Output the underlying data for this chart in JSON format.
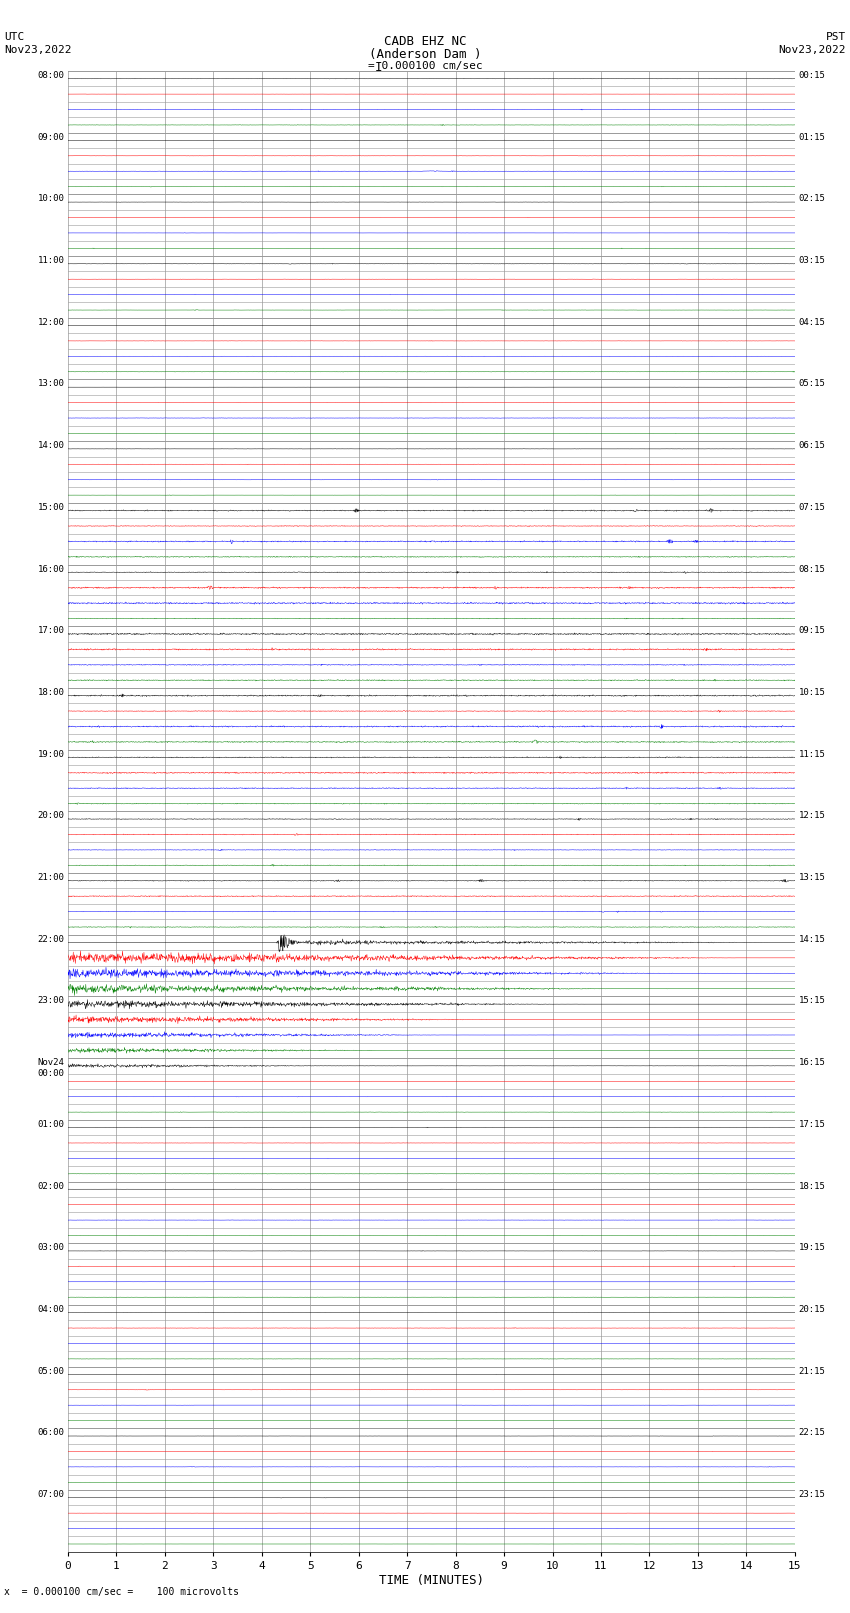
{
  "title_line1": "CADB EHZ NC",
  "title_line2": "(Anderson Dam )",
  "title_scale": "I = 0.000100 cm/sec",
  "left_header_line1": "UTC",
  "left_header_line2": "Nov23,2022",
  "right_header_line1": "PST",
  "right_header_line2": "Nov23,2022",
  "bottom_label": "TIME (MINUTES)",
  "bottom_note": "x  = 0.000100 cm/sec =    100 microvolts",
  "left_times": [
    "08:00",
    "",
    "",
    "",
    "09:00",
    "",
    "",
    "",
    "10:00",
    "",
    "",
    "",
    "11:00",
    "",
    "",
    "",
    "12:00",
    "",
    "",
    "",
    "13:00",
    "",
    "",
    "",
    "14:00",
    "",
    "",
    "",
    "15:00",
    "",
    "",
    "",
    "16:00",
    "",
    "",
    "",
    "17:00",
    "",
    "",
    "",
    "18:00",
    "",
    "",
    "",
    "19:00",
    "",
    "",
    "",
    "20:00",
    "",
    "",
    "",
    "21:00",
    "",
    "",
    "",
    "22:00",
    "",
    "",
    "",
    "23:00",
    "",
    "",
    "",
    "Nov24\n00:00",
    "",
    "",
    "",
    "01:00",
    "",
    "",
    "",
    "02:00",
    "",
    "",
    "",
    "03:00",
    "",
    "",
    "",
    "04:00",
    "",
    "",
    "",
    "05:00",
    "",
    "",
    "",
    "06:00",
    "",
    "",
    "",
    "07:00",
    "",
    "",
    ""
  ],
  "right_times": [
    "00:15",
    "",
    "",
    "",
    "01:15",
    "",
    "",
    "",
    "02:15",
    "",
    "",
    "",
    "03:15",
    "",
    "",
    "",
    "04:15",
    "",
    "",
    "",
    "05:15",
    "",
    "",
    "",
    "06:15",
    "",
    "",
    "",
    "07:15",
    "",
    "",
    "",
    "08:15",
    "",
    "",
    "",
    "09:15",
    "",
    "",
    "",
    "10:15",
    "",
    "",
    "",
    "11:15",
    "",
    "",
    "",
    "12:15",
    "",
    "",
    "",
    "13:15",
    "",
    "",
    "",
    "14:15",
    "",
    "",
    "",
    "15:15",
    "",
    "",
    "",
    "16:15",
    "",
    "",
    "",
    "17:15",
    "",
    "",
    "",
    "18:15",
    "",
    "",
    "",
    "19:15",
    "",
    "",
    "",
    "20:15",
    "",
    "",
    "",
    "21:15",
    "",
    "",
    "",
    "22:15",
    "",
    "",
    "",
    "23:15",
    "",
    "",
    ""
  ],
  "num_hours": 24,
  "traces_per_hour": 4,
  "minutes_per_row": 15,
  "x_ticks": [
    0,
    1,
    2,
    3,
    4,
    5,
    6,
    7,
    8,
    9,
    10,
    11,
    12,
    13,
    14,
    15
  ],
  "background_color": "#ffffff",
  "grid_color": "#999999",
  "trace_colors": [
    "black",
    "red",
    "blue",
    "green"
  ],
  "base_noise_amp": 0.003,
  "earthquake_row": 56,
  "earthquake_minute": 4.35,
  "earthquake_amplitude": 0.45,
  "fig_width": 8.5,
  "fig_height": 16.13,
  "dpi": 100
}
